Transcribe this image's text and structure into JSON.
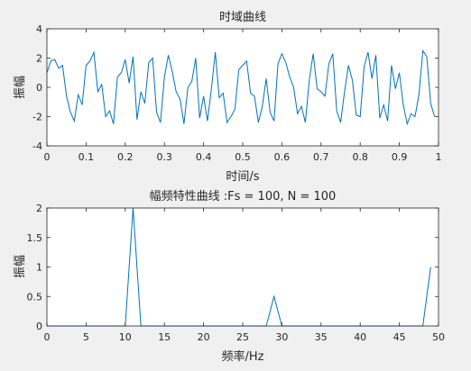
{
  "colors": {
    "figure_bg": "#f0f0f0",
    "axes_bg": "#ffffff",
    "axes_line": "#262626",
    "series": "#0072bd"
  },
  "chart_data": [
    {
      "type": "line",
      "title": "时域曲线",
      "xlabel": "时间/s",
      "ylabel": "振幅",
      "xlim": [
        0,
        1
      ],
      "ylim": [
        -4,
        4
      ],
      "xticks": [
        0,
        0.1,
        0.2,
        0.3,
        0.4,
        0.5,
        0.6,
        0.7,
        0.8,
        0.9,
        1
      ],
      "xtick_labels": [
        "0",
        "0.1",
        "0.2",
        "0.3",
        "0.4",
        "0.5",
        "0.6",
        "0.7",
        "0.8",
        "0.9",
        "1"
      ],
      "yticks": [
        4,
        2,
        0,
        -2,
        -4
      ],
      "ytick_labels": [
        "4",
        "2",
        "0",
        "-2",
        "-4"
      ],
      "grid": false,
      "series": [
        {
          "x": [
            0,
            0.01,
            0.02,
            0.03,
            0.04,
            0.05,
            0.06,
            0.07,
            0.08,
            0.09,
            0.1,
            0.11,
            0.12,
            0.13,
            0.14,
            0.15,
            0.16,
            0.17,
            0.18,
            0.19,
            0.2,
            0.21,
            0.22,
            0.23,
            0.24,
            0.25,
            0.26,
            0.27,
            0.28,
            0.29,
            0.3,
            0.31,
            0.32,
            0.33,
            0.34,
            0.35,
            0.36,
            0.37,
            0.38,
            0.39,
            0.4,
            0.41,
            0.42,
            0.43,
            0.44,
            0.45,
            0.46,
            0.47,
            0.48,
            0.49,
            0.5,
            0.51,
            0.52,
            0.53,
            0.54,
            0.55,
            0.56,
            0.57,
            0.58,
            0.59,
            0.6,
            0.61,
            0.62,
            0.63,
            0.64,
            0.65,
            0.66,
            0.67,
            0.68,
            0.69,
            0.7,
            0.71,
            0.72,
            0.73,
            0.74,
            0.75,
            0.76,
            0.77,
            0.78,
            0.79,
            0.8,
            0.81,
            0.82,
            0.83,
            0.84,
            0.85,
            0.86,
            0.87,
            0.88,
            0.89,
            0.9,
            0.91,
            0.92,
            0.93,
            0.94,
            0.95,
            0.96,
            0.97,
            0.98,
            0.99
          ],
          "values": [
            1,
            1.8,
            1.9,
            1.3,
            1.5,
            -0.6,
            -1.7,
            -2.3,
            -0.5,
            -1.2,
            1.5,
            1.8,
            2.4,
            -0.3,
            0.2,
            -2.0,
            -1.6,
            -2.5,
            0.7,
            1.0,
            1.9,
            0.3,
            2.1,
            -2.2,
            -0.3,
            -1.1,
            1.7,
            2.0,
            -1.7,
            -2.4,
            0.7,
            2.2,
            1.1,
            -0.3,
            -0.8,
            -2.5,
            0,
            0.4,
            2.0,
            -2.1,
            -0.6,
            -2.3,
            -0.1,
            2.4,
            -0.7,
            -0.4,
            -2.4,
            -2.0,
            -1.5,
            1.2,
            1.5,
            1.8,
            -0.4,
            -0.6,
            -2.4,
            -1.3,
            0.6,
            -1.7,
            -2.3,
            1.6,
            2.3,
            1.7,
            0.7,
            0,
            -1.8,
            -1.3,
            -2.4,
            0.5,
            2.3,
            -0.1,
            -0.3,
            -0.6,
            1.6,
            2.3,
            -1.6,
            -2.4,
            -0.3,
            1.5,
            0.5,
            -1.9,
            -2.0,
            1.4,
            2.4,
            0.6,
            2.2,
            -2.1,
            -1.2,
            -2.3,
            1.5,
            -0.1,
            1.0,
            -1.2,
            -2.5,
            -1.8,
            -2.0,
            -0.5,
            2.5,
            2.1,
            -1.1,
            -2.0
          ]
        }
      ]
    },
    {
      "type": "line",
      "title": "幅频特性曲线 :Fs = 100, N = 100",
      "xlabel": "频率/Hz",
      "ylabel": "振幅",
      "xlim": [
        0,
        50
      ],
      "ylim": [
        0,
        2
      ],
      "xticks": [
        0,
        5,
        10,
        15,
        20,
        25,
        30,
        35,
        40,
        45,
        50
      ],
      "xtick_labels": [
        "0",
        "5",
        "10",
        "15",
        "20",
        "25",
        "30",
        "35",
        "40",
        "45",
        "50"
      ],
      "yticks": [
        2,
        1.5,
        1,
        0.5,
        0
      ],
      "ytick_labels": [
        "2",
        "1.5",
        "1",
        "0.5",
        "0"
      ],
      "grid": false,
      "series": [
        {
          "x": [
            0,
            1,
            2,
            3,
            4,
            5,
            6,
            7,
            8,
            9,
            10,
            11,
            12,
            13,
            14,
            15,
            16,
            17,
            18,
            19,
            20,
            21,
            22,
            23,
            24,
            25,
            26,
            27,
            28,
            29,
            30,
            31,
            32,
            33,
            34,
            35,
            36,
            37,
            38,
            39,
            40,
            41,
            42,
            43,
            44,
            45,
            46,
            47,
            48,
            49
          ],
          "values": [
            0,
            0,
            0,
            0,
            0,
            0,
            0,
            0,
            0,
            0,
            0,
            2,
            0,
            0,
            0,
            0,
            0,
            0,
            0,
            0,
            0,
            0,
            0,
            0,
            0,
            0,
            0,
            0,
            0,
            0.5,
            0,
            0,
            0,
            0,
            0,
            0,
            0,
            0,
            0,
            0,
            0,
            0,
            0,
            0,
            0,
            0,
            0,
            0,
            0,
            1
          ]
        }
      ]
    }
  ]
}
